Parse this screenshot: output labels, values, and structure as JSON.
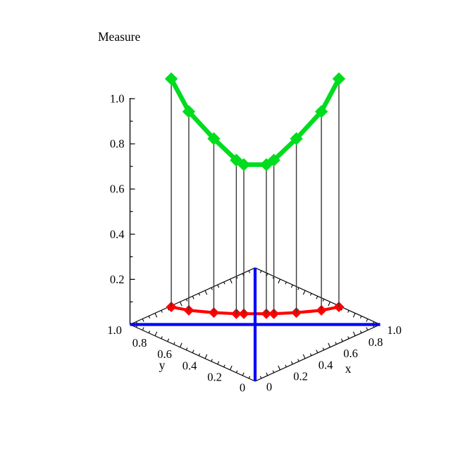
{
  "chart_data": {
    "type": "scatter",
    "subtype": "3d-stem-plot",
    "zlabel": "Measure",
    "xlabel": "x",
    "ylabel": "y",
    "x_range": [
      0,
      1
    ],
    "y_range": [
      0,
      1
    ],
    "z_range": [
      0,
      1
    ],
    "grid": false,
    "background": "#FFFFFF",
    "x_ticks": [
      {
        "value": 0,
        "label": "0"
      },
      {
        "value": 0.2,
        "label": "0.2"
      },
      {
        "value": 0.4,
        "label": "0.4"
      },
      {
        "value": 0.6,
        "label": "0.6"
      },
      {
        "value": 0.8,
        "label": "0.8"
      },
      {
        "value": 1,
        "label": "1.0"
      }
    ],
    "y_ticks": [
      {
        "value": 0,
        "label": "0"
      },
      {
        "value": 0.2,
        "label": "0.2"
      },
      {
        "value": 0.4,
        "label": "0.4"
      },
      {
        "value": 0.6,
        "label": "0.6"
      },
      {
        "value": 0.8,
        "label": "0.8"
      },
      {
        "value": 1,
        "label": "1.0"
      }
    ],
    "z_ticks": [
      {
        "value": 0.2,
        "label": "0.2"
      },
      {
        "value": 0.4,
        "label": "0.4"
      },
      {
        "value": 0.6,
        "label": "0.6"
      },
      {
        "value": 0.8,
        "label": "0.8"
      },
      {
        "value": 1,
        "label": "1.0"
      }
    ],
    "points": [
      {
        "x": 0.32,
        "y": 0.99,
        "measure": 1.01
      },
      {
        "x": 0.36,
        "y": 0.89,
        "measure": 0.88
      },
      {
        "x": 0.44,
        "y": 0.77,
        "measure": 0.77
      },
      {
        "x": 0.52,
        "y": 0.67,
        "measure": 0.68
      },
      {
        "x": 0.55,
        "y": 0.64,
        "measure": 0.66
      },
      {
        "x": 0.64,
        "y": 0.55,
        "measure": 0.66
      },
      {
        "x": 0.67,
        "y": 0.52,
        "measure": 0.68
      },
      {
        "x": 0.77,
        "y": 0.44,
        "measure": 0.77
      },
      {
        "x": 0.89,
        "y": 0.36,
        "measure": 0.88
      },
      {
        "x": 0.99,
        "y": 0.32,
        "measure": 1.01
      }
    ],
    "series": [
      {
        "name": "measure-curve",
        "color": "#00DC1E",
        "marker": "diamond"
      },
      {
        "name": "base-projection",
        "color": "#FF0000",
        "marker": "diamond"
      }
    ],
    "stems": {
      "color": "#383838"
    },
    "reference_lines": [
      {
        "name": "diagonal-x-equals-y",
        "color": "#0000FF",
        "from": {
          "x": 0,
          "y": 0
        },
        "to": {
          "x": 1,
          "y": 1
        }
      },
      {
        "name": "antidiagonal-x-plus-y-one",
        "color": "#0000FF",
        "from": {
          "x": 0,
          "y": 1
        },
        "to": {
          "x": 1,
          "y": 0
        }
      }
    ],
    "axis_color": "#000000"
  }
}
